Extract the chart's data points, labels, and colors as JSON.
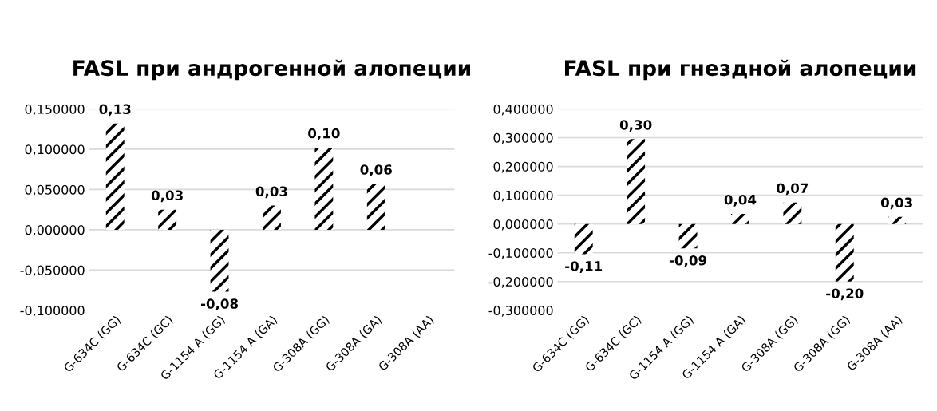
{
  "chart_data": [
    {
      "type": "bar",
      "title": "FASL при андрогенной алопеции",
      "categories": [
        "G-634C (GG)",
        "G-634C (GC)",
        "G-1154 A (GG)",
        "G-1154 A (GA)",
        "G-308A (GG)",
        "G-308A (GA)",
        "G-308A (AA)"
      ],
      "values": [
        0.132,
        0.025,
        -0.077,
        0.03,
        0.102,
        0.057,
        null
      ],
      "value_labels": [
        "0,13",
        "0,03",
        "-0,08",
        "0,03",
        "0,10",
        "0,06",
        null
      ],
      "color": "#000000",
      "ylim": [
        -0.1,
        0.15
      ],
      "yticks": [
        {
          "value": -0.1,
          "label": "-0,100000"
        },
        {
          "value": -0.05,
          "label": "-0,050000"
        },
        {
          "value": 0,
          "label": "0,000000"
        },
        {
          "value": 0.05,
          "label": "0,050000"
        },
        {
          "value": 0.1,
          "label": "0,100000"
        },
        {
          "value": 0.15,
          "label": "0,150000"
        }
      ],
      "grid": "y",
      "legend": false
    },
    {
      "type": "bar",
      "title": "FASL при гнездной алопеции",
      "categories": [
        "G-634C (GG)",
        "G-634C (GC)",
        "G-1154 A (GG)",
        "G-1154 A (GA)",
        "G-308A (GG)",
        "G-308A (GG)",
        "G-308A (AA)"
      ],
      "values": [
        -0.105,
        0.295,
        -0.085,
        0.035,
        0.075,
        -0.2,
        0.025
      ],
      "value_labels": [
        "-0,11",
        "0,30",
        "-0,09",
        "0,04",
        "0,07",
        "-0,20",
        "0,03"
      ],
      "color": "#000000",
      "ylim": [
        -0.3,
        0.4
      ],
      "yticks": [
        {
          "value": -0.3,
          "label": "-0,300000"
        },
        {
          "value": -0.2,
          "label": "-0,200000"
        },
        {
          "value": -0.1,
          "label": "-0,100000"
        },
        {
          "value": 0,
          "label": "0,000000"
        },
        {
          "value": 0.1,
          "label": "0,100000"
        },
        {
          "value": 0.2,
          "label": "0,200000"
        },
        {
          "value": 0.3,
          "label": "0,300000"
        },
        {
          "value": 0.4,
          "label": "0,400000"
        }
      ],
      "grid": "y",
      "legend": false
    }
  ]
}
